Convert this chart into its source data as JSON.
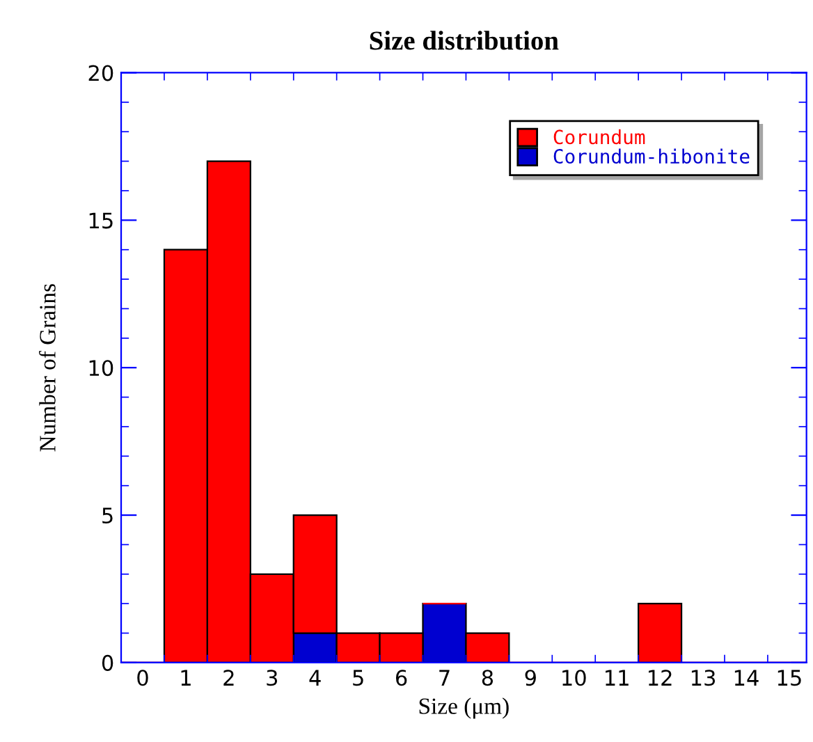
{
  "chart_data": {
    "type": "bar",
    "stacked": true,
    "title": "Size distribution",
    "xlabel": "Size (μm)",
    "ylabel": "Number of Grains",
    "x": [
      0,
      1,
      2,
      3,
      4,
      5,
      6,
      7,
      8,
      9,
      10,
      11,
      12,
      13,
      14,
      15
    ],
    "series": [
      {
        "name": "Corundum-hibonite",
        "color": "#0000d0",
        "values": [
          0,
          0,
          0,
          0,
          1,
          0,
          0,
          2,
          0,
          0,
          0,
          0,
          0,
          0,
          0,
          0
        ]
      },
      {
        "name": "Corundum",
        "color": "#ff0000",
        "values": [
          0,
          14,
          17,
          3,
          4,
          1,
          1,
          0,
          1,
          0,
          0,
          0,
          2,
          0,
          0,
          0
        ]
      }
    ],
    "xlim": [
      -0.5,
      15.4
    ],
    "ylim": [
      0,
      20
    ],
    "xticks": [
      0,
      1,
      2,
      3,
      4,
      5,
      6,
      7,
      8,
      9,
      10,
      11,
      12,
      13,
      14,
      15
    ],
    "yticks": [
      0,
      5,
      10,
      15,
      20
    ],
    "grid": false,
    "legend": "top right"
  }
}
